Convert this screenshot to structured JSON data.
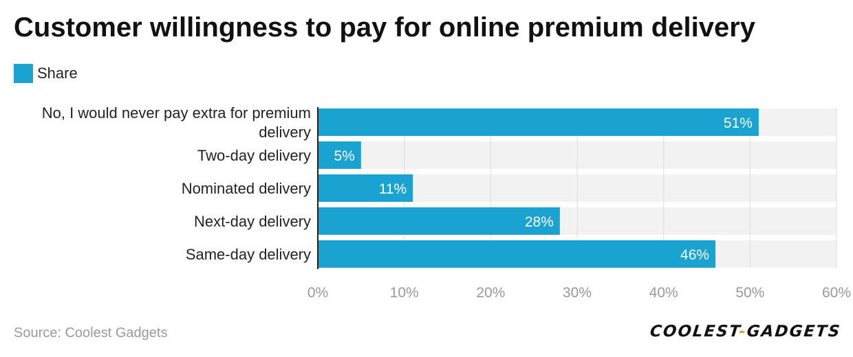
{
  "title": "Customer willingness to pay for online premium delivery",
  "legend": {
    "label": "Share"
  },
  "source": "Source: Coolest Gadgets",
  "logo_text": "COOLEST-GADGETS",
  "colors": {
    "bar": "#1aa3d1",
    "track": "#f2f2f2",
    "grid": "#dddddd",
    "axis": "#222222",
    "tick": "#999999",
    "label": "#222222",
    "value": "#ffffff"
  },
  "chart_data": {
    "type": "bar",
    "orientation": "horizontal",
    "categories": [
      [
        "No, I would never pay extra for premium",
        "delivery"
      ],
      [
        "Two-day delivery"
      ],
      [
        "Nominated delivery"
      ],
      [
        "Next-day delivery"
      ],
      [
        "Same-day delivery"
      ]
    ],
    "series": [
      {
        "name": "Share",
        "values": [
          51,
          5,
          11,
          28,
          46
        ]
      }
    ],
    "value_labels": [
      "51%",
      "5%",
      "11%",
      "28%",
      "46%"
    ],
    "xlim": [
      0,
      60
    ],
    "x_ticks": [
      0,
      10,
      20,
      30,
      40,
      50,
      60
    ],
    "x_tick_labels": [
      "0%",
      "10%",
      "20%",
      "30%",
      "40%",
      "50%",
      "60%"
    ],
    "grid": true,
    "legend_position": "top-left"
  }
}
